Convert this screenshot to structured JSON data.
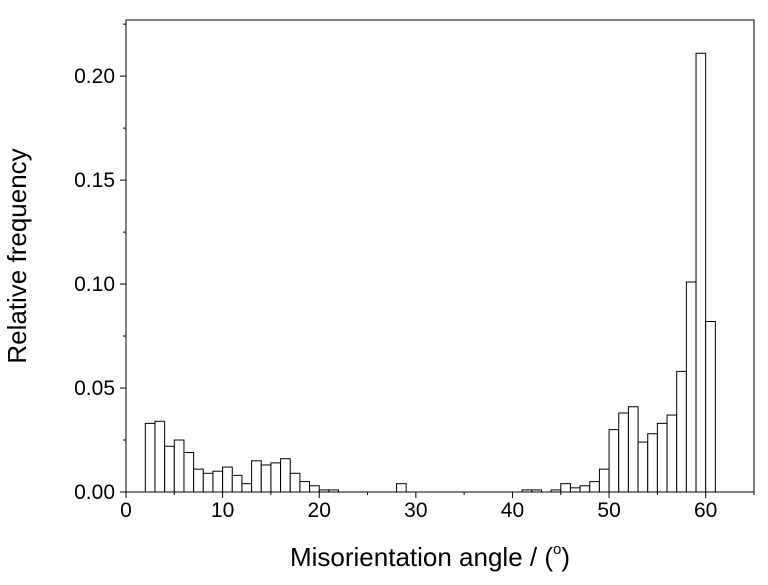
{
  "chart_data": {
    "type": "bar",
    "title": "",
    "xlabel": "Misorientation angle / (",
    "xlabel_superscript": "o",
    "xlabel_suffix": ")",
    "ylabel": "Relative frequency",
    "xlim": [
      0,
      65
    ],
    "ylim": [
      0,
      0.227
    ],
    "x_ticks": [
      0,
      10,
      20,
      30,
      40,
      50,
      60
    ],
    "y_ticks": [
      0.0,
      0.05,
      0.1,
      0.15,
      0.2
    ],
    "y_tick_labels": [
      "0.00",
      "0.05",
      "0.10",
      "0.15",
      "0.20"
    ],
    "grid": false,
    "bin_width": 1,
    "bar_color": "#ffffff",
    "edge_color": "#000000",
    "bins": [
      {
        "x": 2.5,
        "value": 0.033
      },
      {
        "x": 3.5,
        "value": 0.034
      },
      {
        "x": 4.5,
        "value": 0.022
      },
      {
        "x": 5.5,
        "value": 0.025
      },
      {
        "x": 6.5,
        "value": 0.019
      },
      {
        "x": 7.5,
        "value": 0.011
      },
      {
        "x": 8.5,
        "value": 0.009
      },
      {
        "x": 9.5,
        "value": 0.01
      },
      {
        "x": 10.5,
        "value": 0.012
      },
      {
        "x": 11.5,
        "value": 0.008
      },
      {
        "x": 12.5,
        "value": 0.004
      },
      {
        "x": 13.5,
        "value": 0.015
      },
      {
        "x": 14.5,
        "value": 0.013
      },
      {
        "x": 15.5,
        "value": 0.014
      },
      {
        "x": 16.5,
        "value": 0.016
      },
      {
        "x": 17.5,
        "value": 0.009
      },
      {
        "x": 18.5,
        "value": 0.005
      },
      {
        "x": 19.5,
        "value": 0.003
      },
      {
        "x": 20.5,
        "value": 0.001
      },
      {
        "x": 21.5,
        "value": 0.001
      },
      {
        "x": 28.5,
        "value": 0.004
      },
      {
        "x": 41.5,
        "value": 0.001
      },
      {
        "x": 42.5,
        "value": 0.001
      },
      {
        "x": 44.5,
        "value": 0.001
      },
      {
        "x": 45.5,
        "value": 0.004
      },
      {
        "x": 46.5,
        "value": 0.002
      },
      {
        "x": 47.5,
        "value": 0.003
      },
      {
        "x": 48.5,
        "value": 0.005
      },
      {
        "x": 49.5,
        "value": 0.011
      },
      {
        "x": 50.5,
        "value": 0.03
      },
      {
        "x": 51.5,
        "value": 0.038
      },
      {
        "x": 52.5,
        "value": 0.041
      },
      {
        "x": 53.5,
        "value": 0.024
      },
      {
        "x": 54.5,
        "value": 0.028
      },
      {
        "x": 55.5,
        "value": 0.033
      },
      {
        "x": 56.5,
        "value": 0.037
      },
      {
        "x": 57.5,
        "value": 0.058
      },
      {
        "x": 58.5,
        "value": 0.101
      },
      {
        "x": 59.5,
        "value": 0.211
      },
      {
        "x": 60.5,
        "value": 0.082
      }
    ]
  }
}
